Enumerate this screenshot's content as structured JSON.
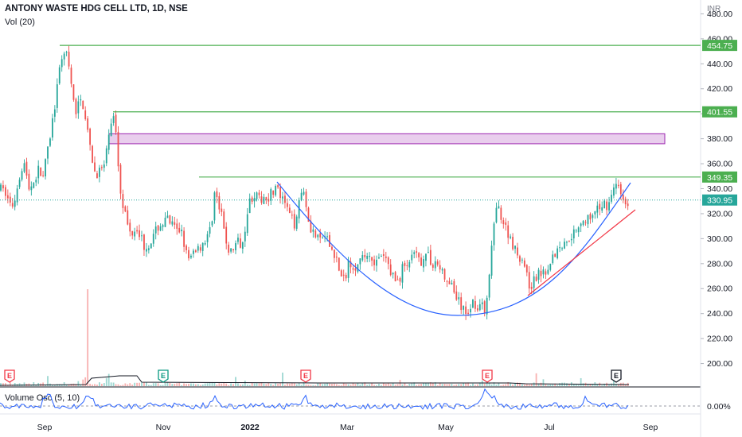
{
  "header": {
    "title": "ANTONY WASTE HDG CELL LTD, 1D, NSE",
    "volume_label": "Vol (20)",
    "oscillator_label": "Volume Osc (5, 10)",
    "currency": "INR"
  },
  "colors": {
    "up": "#26a69a",
    "down": "#ef5350",
    "level_line": "#4caf50",
    "last_price": "#26a69a",
    "curve": "#2962ff",
    "trendline_red": "#f23645",
    "zone_fill": "#e1bee7",
    "zone_stroke": "#9c27b0",
    "osc_line": "#2962ff"
  },
  "chart_data": {
    "type": "candlestick",
    "symbol": "ANTONY WASTE HDG CELL LTD",
    "interval": "1D",
    "exchange": "NSE",
    "y_axis": {
      "unit": "INR",
      "ticks": [
        "480.00",
        "460.00",
        "440.00",
        "420.00",
        "400.00",
        "380.00",
        "360.00",
        "340.00",
        "320.00",
        "300.00",
        "280.00",
        "260.00",
        "240.00",
        "220.00",
        "200.00"
      ],
      "range": [
        180,
        486
      ]
    },
    "x_axis": {
      "ticks": [
        "Sep",
        "Nov",
        "2022",
        "Mar",
        "May",
        "Jul",
        "Sep"
      ]
    },
    "price_levels": [
      {
        "label": "454.75",
        "value": 454.75
      },
      {
        "label": "401.55",
        "value": 401.55
      },
      {
        "label": "349.35",
        "value": 349.35
      }
    ],
    "last_price": {
      "label": "330.95",
      "value": 330.95
    },
    "supply_zone": {
      "top": 384,
      "bottom": 376
    },
    "path": [
      [
        0,
        340
      ],
      [
        8,
        336
      ],
      [
        14,
        325
      ],
      [
        18,
        330
      ],
      [
        24,
        350
      ],
      [
        30,
        362
      ],
      [
        36,
        340
      ],
      [
        42,
        345
      ],
      [
        48,
        355
      ],
      [
        54,
        350
      ],
      [
        60,
        370
      ],
      [
        66,
        395
      ],
      [
        72,
        420
      ],
      [
        76,
        440
      ],
      [
        80,
        452
      ],
      [
        84,
        445
      ],
      [
        88,
        430
      ],
      [
        92,
        410
      ],
      [
        96,
        400
      ],
      [
        100,
        412
      ],
      [
        104,
        408
      ],
      [
        108,
        396
      ],
      [
        112,
        375
      ],
      [
        116,
        360
      ],
      [
        120,
        352
      ],
      [
        126,
        355
      ],
      [
        132,
        358
      ],
      [
        138,
        392
      ],
      [
        142,
        398
      ],
      [
        146,
        386
      ],
      [
        150,
        345
      ],
      [
        154,
        330
      ],
      [
        158,
        318
      ],
      [
        162,
        305
      ],
      [
        166,
        306
      ],
      [
        172,
        310
      ],
      [
        178,
        300
      ],
      [
        182,
        292
      ],
      [
        186,
        296
      ],
      [
        192,
        300
      ],
      [
        198,
        309
      ],
      [
        204,
        312
      ],
      [
        210,
        315
      ],
      [
        216,
        311
      ],
      [
        222,
        305
      ],
      [
        228,
        308
      ],
      [
        234,
        288
      ],
      [
        238,
        280
      ],
      [
        244,
        292
      ],
      [
        250,
        293
      ],
      [
        256,
        298
      ],
      [
        262,
        302
      ],
      [
        266,
        315
      ],
      [
        270,
        340
      ],
      [
        274,
        326
      ],
      [
        278,
        318
      ],
      [
        282,
        305
      ],
      [
        286,
        292
      ],
      [
        290,
        289
      ],
      [
        296,
        296
      ],
      [
        302,
        297
      ],
      [
        306,
        300
      ],
      [
        310,
        322
      ],
      [
        314,
        331
      ],
      [
        320,
        336
      ],
      [
        326,
        330
      ],
      [
        332,
        334
      ],
      [
        336,
        333
      ],
      [
        342,
        338
      ],
      [
        346,
        341
      ],
      [
        350,
        337
      ],
      [
        354,
        330
      ],
      [
        358,
        328
      ],
      [
        362,
        321
      ],
      [
        366,
        315
      ],
      [
        370,
        312
      ],
      [
        376,
        333
      ],
      [
        382,
        340
      ],
      [
        388,
        312
      ],
      [
        394,
        305
      ],
      [
        400,
        298
      ],
      [
        406,
        302
      ],
      [
        412,
        297
      ],
      [
        418,
        290
      ],
      [
        422,
        286
      ],
      [
        426,
        275
      ],
      [
        430,
        265
      ],
      [
        434,
        270
      ],
      [
        438,
        283
      ],
      [
        444,
        279
      ],
      [
        450,
        278
      ],
      [
        456,
        284
      ],
      [
        462,
        289
      ],
      [
        468,
        284
      ],
      [
        474,
        280
      ],
      [
        480,
        286
      ],
      [
        486,
        282
      ],
      [
        490,
        275
      ],
      [
        494,
        270
      ],
      [
        498,
        265
      ],
      [
        502,
        268
      ],
      [
        506,
        278
      ],
      [
        512,
        280
      ],
      [
        518,
        284
      ],
      [
        522,
        288
      ],
      [
        526,
        281
      ],
      [
        530,
        283
      ],
      [
        534,
        290
      ],
      [
        538,
        285
      ],
      [
        542,
        280
      ],
      [
        546,
        282
      ],
      [
        550,
        279
      ],
      [
        554,
        275
      ],
      [
        558,
        270
      ],
      [
        562,
        262
      ],
      [
        566,
        265
      ],
      [
        570,
        258
      ],
      [
        574,
        252
      ],
      [
        578,
        247
      ],
      [
        582,
        242
      ],
      [
        586,
        240
      ],
      [
        590,
        245
      ],
      [
        594,
        250
      ],
      [
        598,
        246
      ],
      [
        602,
        248
      ],
      [
        606,
        245
      ],
      [
        610,
        240
      ],
      [
        614,
        262
      ],
      [
        618,
        300
      ],
      [
        622,
        318
      ],
      [
        626,
        325
      ],
      [
        630,
        318
      ],
      [
        634,
        310
      ],
      [
        638,
        305
      ],
      [
        642,
        300
      ],
      [
        646,
        292
      ],
      [
        650,
        288
      ],
      [
        654,
        285
      ],
      [
        658,
        282
      ],
      [
        662,
        268
      ],
      [
        666,
        262
      ],
      [
        670,
        265
      ],
      [
        674,
        270
      ],
      [
        678,
        272
      ],
      [
        682,
        276
      ],
      [
        686,
        275
      ],
      [
        690,
        282
      ],
      [
        694,
        285
      ],
      [
        698,
        290
      ],
      [
        702,
        292
      ],
      [
        706,
        295
      ],
      [
        710,
        296
      ],
      [
        714,
        302
      ],
      [
        718,
        303
      ],
      [
        722,
        307
      ],
      [
        726,
        310
      ],
      [
        730,
        315
      ],
      [
        734,
        314
      ],
      [
        738,
        317
      ],
      [
        742,
        313
      ],
      [
        746,
        318
      ],
      [
        750,
        322
      ],
      [
        754,
        326
      ],
      [
        758,
        329
      ],
      [
        762,
        327
      ],
      [
        766,
        332
      ],
      [
        770,
        336
      ],
      [
        774,
        344
      ],
      [
        778,
        340
      ],
      [
        782,
        333
      ],
      [
        786,
        326
      ],
      [
        790,
        331
      ]
    ],
    "volume_osc": {
      "zero_label": "0.00%"
    },
    "earnings_markers": [
      {
        "label": "E",
        "index": 0
      },
      {
        "label": "E",
        "index": 1
      },
      {
        "label": "E",
        "index": 2
      },
      {
        "label": "E",
        "index": 3
      },
      {
        "label": "E",
        "index": 4
      }
    ]
  }
}
